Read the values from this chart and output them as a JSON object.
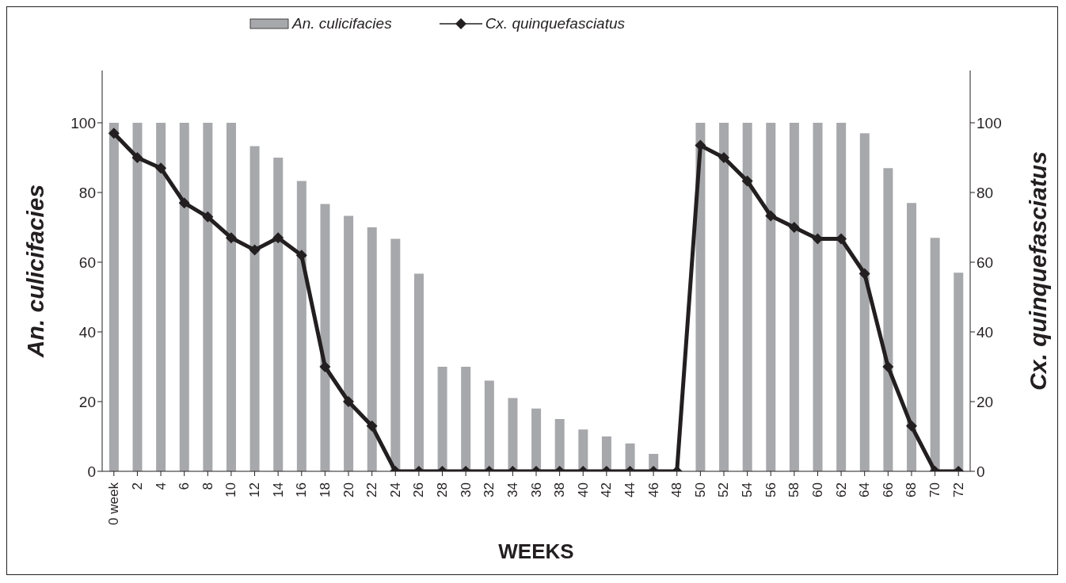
{
  "chart_data": {
    "type": "bar",
    "xlabel": "WEEKS",
    "ylabel": "An. culicifacies",
    "y2label": "Cx. quinquefasciatus",
    "categories": [
      "0 week",
      "2",
      "4",
      "6",
      "8",
      "10",
      "12",
      "14",
      "16",
      "18",
      "20",
      "22",
      "24",
      "26",
      "28",
      "30",
      "32",
      "34",
      "36",
      "38",
      "40",
      "42",
      "44",
      "46",
      "48",
      "50",
      "52",
      "54",
      "56",
      "58",
      "60",
      "62",
      "64",
      "66",
      "68",
      "70",
      "72"
    ],
    "series": [
      {
        "name": "An. culicifacies",
        "type": "bar",
        "color": "#a7a8ab",
        "values": [
          100,
          100,
          100,
          100,
          100,
          100,
          93.3,
          90,
          83.3,
          76.7,
          73.3,
          70,
          66.7,
          56.7,
          30,
          30,
          26,
          21,
          18,
          15,
          12,
          10,
          8,
          5,
          0,
          100,
          100,
          100,
          100,
          100,
          100,
          100,
          97,
          87,
          77,
          67,
          57
        ]
      },
      {
        "name": "Cx. quinquefasciatus",
        "type": "line",
        "axis": "y2",
        "color": "#231f20",
        "marker": "diamond",
        "values": [
          97,
          90,
          87,
          77,
          73,
          67,
          63.5,
          67,
          62,
          30,
          20,
          13,
          0,
          0,
          0,
          0,
          0,
          0,
          0,
          0,
          0,
          0,
          0,
          0,
          0,
          93.5,
          90,
          83.3,
          73.3,
          70,
          66.7,
          66.7,
          56.7,
          30,
          13,
          0,
          0
        ]
      }
    ],
    "ylim": [
      0,
      115
    ],
    "yticks": [
      0,
      20,
      40,
      60,
      80,
      100
    ],
    "y2lim": [
      0,
      115
    ],
    "y2ticks": [
      0,
      20,
      40,
      60,
      80,
      100
    ],
    "legend": "top"
  }
}
